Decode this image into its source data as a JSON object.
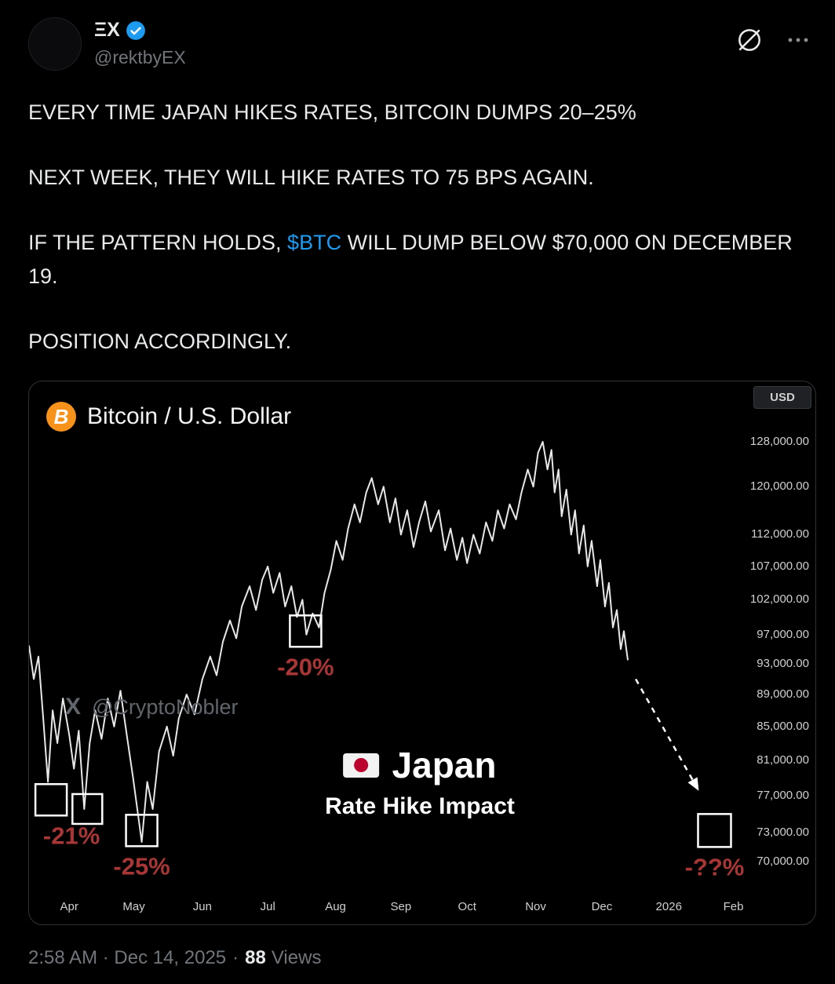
{
  "post": {
    "author": {
      "name": "ΞX",
      "handle": "@rektbyEX",
      "verified": true
    },
    "body": {
      "p1": "EVERY TIME JAPAN HIKES RATES, BITCOIN DUMPS 20–25%",
      "p2": "NEXT WEEK, THEY WILL HIKE RATES TO 75 BPS AGAIN.",
      "p3_pre": "IF THE PATTERN HOLDS, ",
      "p3_link": "$BTC",
      "p3_post": " WILL DUMP BELOW $70,000 ON DECEMBER 19.",
      "p4": "POSITION ACCORDINGLY."
    },
    "footer": {
      "timestamp": "2:58 AM · Dec 14, 2025",
      "separator": "·",
      "views_count": "88",
      "views_label": "Views"
    }
  },
  "chart": {
    "title": "Bitcoin / U.S. Dollar",
    "currency_label": "USD",
    "watermark_logo": "X",
    "watermark_handle": "@CryptoNobler",
    "center_label": {
      "flag": "🇯🇵",
      "title": "Japan",
      "subtitle": "Rate Hike Impact"
    },
    "colors": {
      "line": "#e8e8e8",
      "annotation_red": "#a93636",
      "axis_text": "#d0d0d0",
      "link_blue": "#1d9bf0",
      "bitcoin_orange": "#f7931a",
      "flag_red": "#bc002d"
    }
  },
  "chart_data": {
    "type": "line",
    "title": "Bitcoin / U.S. Dollar",
    "y_scale": "log",
    "ylim": [
      70000,
      128000
    ],
    "grid": false,
    "y_ticks": [
      {
        "label": "128,000.00",
        "value": 128000
      },
      {
        "label": "120,000.00",
        "value": 120000
      },
      {
        "label": "112,000.00",
        "value": 112000
      },
      {
        "label": "107,000.00",
        "value": 107000
      },
      {
        "label": "102,000.00",
        "value": 102000
      },
      {
        "label": "97,000.00",
        "value": 97000
      },
      {
        "label": "93,000.00",
        "value": 93000
      },
      {
        "label": "89,000.00",
        "value": 89000
      },
      {
        "label": "85,000.00",
        "value": 85000
      },
      {
        "label": "81,000.00",
        "value": 81000
      },
      {
        "label": "77,000.00",
        "value": 77000
      },
      {
        "label": "73,000.00",
        "value": 73000
      },
      {
        "label": "70,000.00",
        "value": 70000
      }
    ],
    "x_ticks": [
      {
        "label": "Apr",
        "x_pct": 5.1
      },
      {
        "label": "May",
        "x_pct": 13.3
      },
      {
        "label": "Jun",
        "x_pct": 22.0
      },
      {
        "label": "Jul",
        "x_pct": 30.3
      },
      {
        "label": "Aug",
        "x_pct": 38.9
      },
      {
        "label": "Sep",
        "x_pct": 47.2
      },
      {
        "label": "Oct",
        "x_pct": 55.6
      },
      {
        "label": "Nov",
        "x_pct": 64.3
      },
      {
        "label": "Dec",
        "x_pct": 72.7
      },
      {
        "label": "2026",
        "x_pct": 81.2
      },
      {
        "label": "Feb",
        "x_pct": 89.4
      }
    ],
    "series": [
      {
        "name": "BTC/USD",
        "points": [
          [
            0,
            95500
          ],
          [
            0.6,
            91000
          ],
          [
            1.2,
            94000
          ],
          [
            1.8,
            86000
          ],
          [
            2.4,
            78500
          ],
          [
            3.0,
            87000
          ],
          [
            3.6,
            83000
          ],
          [
            4.3,
            88500
          ],
          [
            5.1,
            84000
          ],
          [
            5.7,
            80000
          ],
          [
            6.3,
            84500
          ],
          [
            7.0,
            75500
          ],
          [
            7.7,
            83000
          ],
          [
            8.4,
            87000
          ],
          [
            9.2,
            83500
          ],
          [
            10.0,
            88500
          ],
          [
            10.8,
            85000
          ],
          [
            11.6,
            89500
          ],
          [
            12.4,
            84000
          ],
          [
            13.2,
            79000
          ],
          [
            14.3,
            72000
          ],
          [
            15.0,
            78500
          ],
          [
            15.7,
            75500
          ],
          [
            16.5,
            82000
          ],
          [
            17.5,
            85000
          ],
          [
            18.3,
            81500
          ],
          [
            19.0,
            86000
          ],
          [
            20.0,
            89000
          ],
          [
            21.0,
            86500
          ],
          [
            22.0,
            91000
          ],
          [
            23.0,
            94000
          ],
          [
            23.8,
            91500
          ],
          [
            24.6,
            96000
          ],
          [
            25.5,
            99000
          ],
          [
            26.3,
            96500
          ],
          [
            27.0,
            101000
          ],
          [
            28.0,
            104000
          ],
          [
            28.8,
            100500
          ],
          [
            29.6,
            105000
          ],
          [
            30.3,
            107000
          ],
          [
            31.0,
            103000
          ],
          [
            31.8,
            106000
          ],
          [
            32.5,
            101000
          ],
          [
            33.3,
            104000
          ],
          [
            34.0,
            99500
          ],
          [
            34.7,
            102000
          ],
          [
            35.2,
            97000
          ],
          [
            36.0,
            100000
          ],
          [
            36.8,
            98000
          ],
          [
            37.5,
            103000
          ],
          [
            38.3,
            106500
          ],
          [
            39.0,
            111000
          ],
          [
            39.8,
            108000
          ],
          [
            40.5,
            113000
          ],
          [
            41.3,
            117000
          ],
          [
            42.0,
            114000
          ],
          [
            42.8,
            119000
          ],
          [
            43.5,
            121500
          ],
          [
            44.3,
            117000
          ],
          [
            45.0,
            120000
          ],
          [
            45.8,
            114000
          ],
          [
            46.5,
            118000
          ],
          [
            47.2,
            112000
          ],
          [
            48.0,
            116000
          ],
          [
            48.8,
            110000
          ],
          [
            49.5,
            114000
          ],
          [
            50.3,
            117500
          ],
          [
            51.0,
            112500
          ],
          [
            52.0,
            116000
          ],
          [
            52.8,
            109500
          ],
          [
            53.5,
            113000
          ],
          [
            54.3,
            108000
          ],
          [
            55.0,
            111500
          ],
          [
            55.6,
            107500
          ],
          [
            56.4,
            112000
          ],
          [
            57.2,
            109000
          ],
          [
            58.0,
            114000
          ],
          [
            58.8,
            111000
          ],
          [
            59.5,
            116000
          ],
          [
            60.3,
            113000
          ],
          [
            61.0,
            117000
          ],
          [
            61.8,
            114500
          ],
          [
            62.5,
            119000
          ],
          [
            63.3,
            123000
          ],
          [
            64.0,
            120000
          ],
          [
            64.6,
            126000
          ],
          [
            65.2,
            128000
          ],
          [
            65.8,
            123000
          ],
          [
            66.3,
            126500
          ],
          [
            66.7,
            119000
          ],
          [
            67.2,
            123000
          ],
          [
            67.6,
            115000
          ],
          [
            68.2,
            119500
          ],
          [
            68.8,
            112000
          ],
          [
            69.3,
            116000
          ],
          [
            69.8,
            109000
          ],
          [
            70.4,
            113500
          ],
          [
            70.9,
            107000
          ],
          [
            71.4,
            111000
          ],
          [
            72.1,
            104000
          ],
          [
            72.5,
            108000
          ],
          [
            73.1,
            101000
          ],
          [
            73.6,
            104500
          ],
          [
            74.1,
            98000
          ],
          [
            74.6,
            100500
          ],
          [
            75.1,
            95000
          ],
          [
            75.5,
            97500
          ],
          [
            76.0,
            93500
          ]
        ]
      }
    ],
    "annotations": {
      "event_boxes": [
        {
          "x": 2.8,
          "price": 76500,
          "size": 40,
          "label": "-21%",
          "label_dx": 26
        },
        {
          "x": 7.4,
          "price": 75500,
          "size": 38,
          "label": "",
          "label_dx": 0
        },
        {
          "x": 14.3,
          "price": 73200,
          "size": 40,
          "label": "-25%",
          "label_dx": 0
        },
        {
          "x": 35.1,
          "price": 97500,
          "size": 40,
          "label": "-20%",
          "label_dx": 0
        },
        {
          "x": 87.0,
          "price": 73200,
          "size": 42,
          "label": "-??%",
          "label_dx": 0
        }
      ],
      "arrow": {
        "style": "dashed",
        "from": {
          "x": 77.0,
          "price": 91000
        },
        "to": {
          "x": 85.0,
          "price": 77500
        }
      },
      "center_text": {
        "title": "Japan",
        "subtitle": "Rate Hike Impact"
      }
    }
  }
}
